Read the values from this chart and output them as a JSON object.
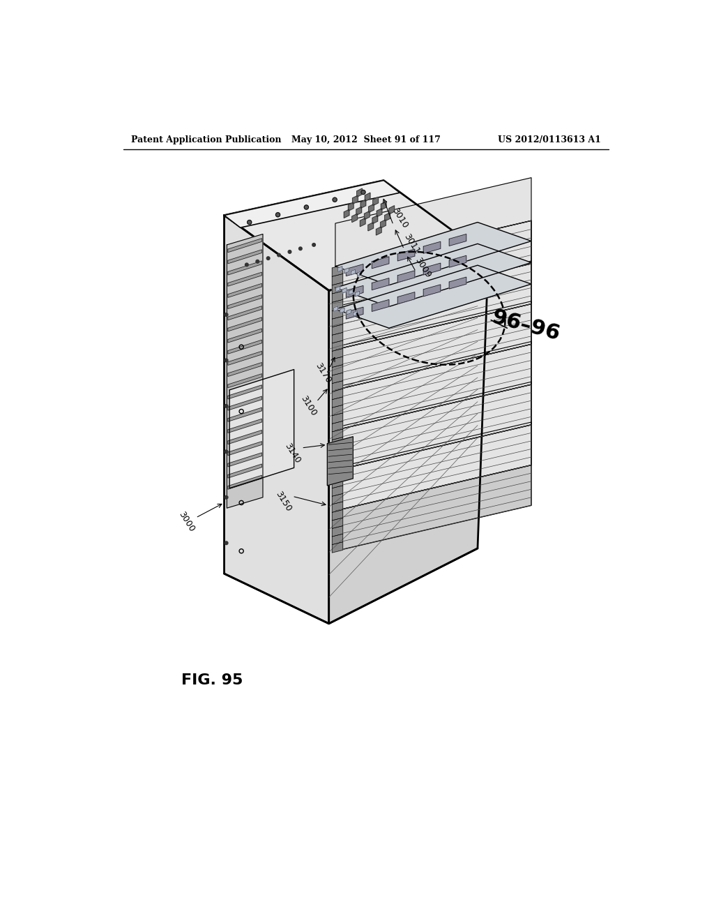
{
  "header_left": "Patent Application Publication",
  "header_mid": "May 10, 2012  Sheet 91 of 117",
  "header_right": "US 2012/0113613 A1",
  "figure_label": "FIG. 95",
  "section_label": "96–96",
  "background_color": "#ffffff",
  "line_color": "#000000",
  "fig_width": 10.24,
  "fig_height": 13.2
}
